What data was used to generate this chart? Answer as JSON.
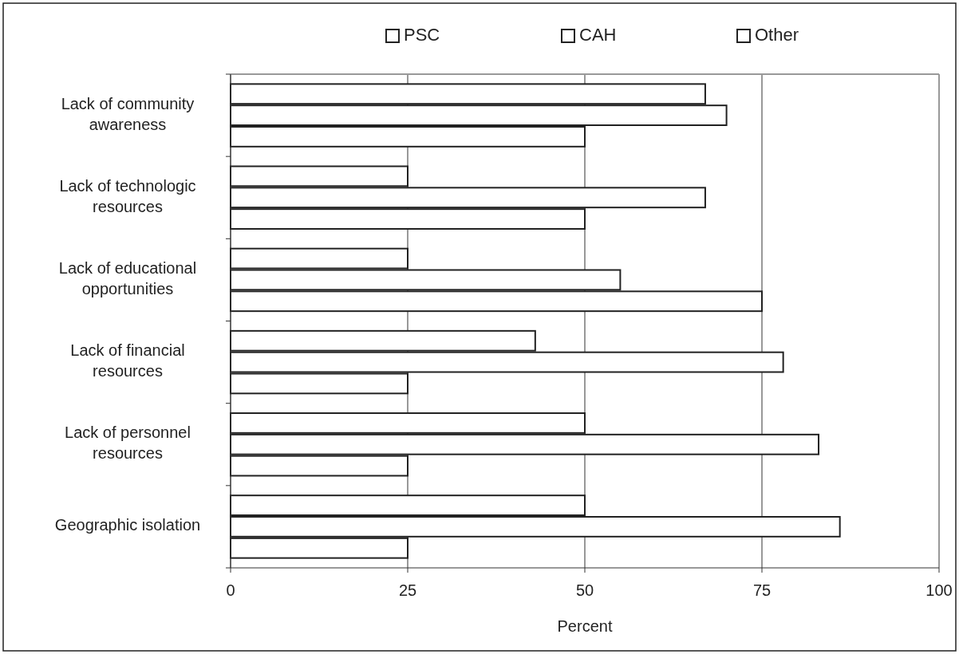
{
  "chart_data": {
    "type": "bar",
    "orientation": "horizontal",
    "xlabel": "Percent",
    "categories": [
      "Lack of community awareness",
      "Lack of technologic resources",
      "Lack of educational opportunities",
      "Lack of financial resources",
      "Lack of personnel resources",
      "Geographic isolation"
    ],
    "series": [
      {
        "name": "PSC",
        "color": "#ffffff",
        "values": [
          67,
          25,
          25,
          43,
          50,
          50
        ]
      },
      {
        "name": "CAH",
        "color": "#ffffff",
        "values": [
          70,
          67,
          55,
          78,
          83,
          86
        ]
      },
      {
        "name": "Other",
        "color": "#ffffff",
        "values": [
          50,
          50,
          75,
          25,
          25,
          25
        ]
      }
    ],
    "xlim": [
      0,
      100
    ],
    "xticks": [
      0,
      25,
      50,
      75,
      100
    ],
    "grid": "x",
    "legend": "top"
  }
}
